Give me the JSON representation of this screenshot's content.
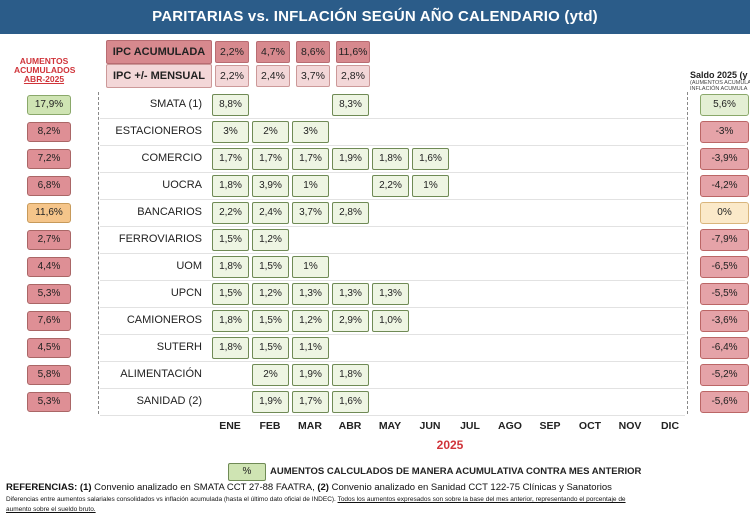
{
  "header": {
    "title": "PARITARIAS vs. INFLACIÓN SEGÚN AÑO CALENDARIO (ytd)"
  },
  "left_label": [
    "AUMENTOS",
    "ACUMULADOS",
    "ABR-2025"
  ],
  "ipc": {
    "acumulada_label": "IPC ACUMULADA",
    "mensual_label": "IPC +/- MENSUAL",
    "acumulada": [
      "2,2%",
      "4,7%",
      "8,6%",
      "11,6%"
    ],
    "mensual": [
      "2,2%",
      "2,4%",
      "3,7%",
      "2,8%"
    ]
  },
  "saldo": {
    "title": "Saldo 2025 (y",
    "subtitle": [
      "(AUMENTOS ACUMULA",
      "INFLACIÓN ACUMULA"
    ]
  },
  "months": [
    "ENE",
    "FEB",
    "MAR",
    "ABR",
    "MAY",
    "JUN",
    "JUL",
    "AGO",
    "SEP",
    "OCT",
    "NOV",
    "DIC"
  ],
  "year": "2025",
  "rows": [
    {
      "union": "SMATA (1)",
      "acc": "17,9%",
      "acc_color": "green",
      "cells": [
        "8,8%",
        "",
        "",
        "8,3%",
        "",
        "",
        "",
        "",
        "",
        "",
        "",
        ""
      ],
      "saldo": "5,6%",
      "saldo_color": "green"
    },
    {
      "union": "ESTACIONEROS",
      "acc": "8,2%",
      "acc_color": "red",
      "cells": [
        "3%",
        "2%",
        "3%",
        "",
        "",
        "",
        "",
        "",
        "",
        "",
        "",
        ""
      ],
      "saldo": "-3%",
      "saldo_color": "red"
    },
    {
      "union": "COMERCIO",
      "acc": "7,2%",
      "acc_color": "red",
      "cells": [
        "1,7%",
        "1,7%",
        "1,7%",
        "1,9%",
        "1,8%",
        "1,6%",
        "",
        "",
        "",
        "",
        "",
        ""
      ],
      "saldo": "-3,9%",
      "saldo_color": "red"
    },
    {
      "union": "UOCRA",
      "acc": "6,8%",
      "acc_color": "red",
      "cells": [
        "1,8%",
        "3,9%",
        "1%",
        "",
        "2,2%",
        "1%",
        "",
        "",
        "",
        "",
        "",
        ""
      ],
      "saldo": "-4,2%",
      "saldo_color": "red"
    },
    {
      "union": "BANCARIOS",
      "acc": "11,6%",
      "acc_color": "orange",
      "cells": [
        "2,2%",
        "2,4%",
        "3,7%",
        "2,8%",
        "",
        "",
        "",
        "",
        "",
        "",
        "",
        ""
      ],
      "saldo": "0%",
      "saldo_color": "cream"
    },
    {
      "union": "FERROVIARIOS",
      "acc": "2,7%",
      "acc_color": "red",
      "cells": [
        "1,5%",
        "1,2%",
        "",
        "",
        "",
        "",
        "",
        "",
        "",
        "",
        "",
        ""
      ],
      "saldo": "-7,9%",
      "saldo_color": "red"
    },
    {
      "union": "UOM",
      "acc": "4,4%",
      "acc_color": "red",
      "cells": [
        "1,8%",
        "1,5%",
        "1%",
        "",
        "",
        "",
        "",
        "",
        "",
        "",
        "",
        ""
      ],
      "saldo": "-6,5%",
      "saldo_color": "red"
    },
    {
      "union": "UPCN",
      "acc": "5,3%",
      "acc_color": "red",
      "cells": [
        "1,5%",
        "1,2%",
        "1,3%",
        "1,3%",
        "1,3%",
        "",
        "",
        "",
        "",
        "",
        "",
        ""
      ],
      "saldo": "-5,5%",
      "saldo_color": "red"
    },
    {
      "union": "CAMIONEROS",
      "acc": "7,6%",
      "acc_color": "red",
      "cells": [
        "1,8%",
        "1,5%",
        "1,2%",
        "2,9%",
        "1,0%",
        "",
        "",
        "",
        "",
        "",
        "",
        ""
      ],
      "saldo": "-3,6%",
      "saldo_color": "red"
    },
    {
      "union": "SUTERH",
      "acc": "4,5%",
      "acc_color": "red",
      "cells": [
        "1,8%",
        "1,5%",
        "1,1%",
        "",
        "",
        "",
        "",
        "",
        "",
        "",
        "",
        ""
      ],
      "saldo": "-6,4%",
      "saldo_color": "red"
    },
    {
      "union": "ALIMENTACIÓN",
      "acc": "5,8%",
      "acc_color": "red",
      "cells": [
        "",
        "2%",
        "1,9%",
        "1,8%",
        "",
        "",
        "",
        "",
        "",
        "",
        "",
        ""
      ],
      "saldo": "-5,2%",
      "saldo_color": "red"
    },
    {
      "union": "SANIDAD (2)",
      "acc": "5,3%",
      "acc_color": "red",
      "cells": [
        "",
        "1,9%",
        "1,7%",
        "1,6%",
        "",
        "",
        "",
        "",
        "",
        "",
        "",
        ""
      ],
      "saldo": "-5,6%",
      "saldo_color": "red"
    }
  ],
  "legend": {
    "symbol": "%",
    "text": "AUMENTOS CALCULADOS DE MANERA ACUMULATIVA CONTRA MES ANTERIOR"
  },
  "references": {
    "line1_label": "REFERENCIAS:",
    "line1_n1": "(1)",
    "line1_t1": "Convenio analizado en SMATA CCT 27-88 FAATRA,",
    "line1_n2": "(2)",
    "line1_t2": "Convenio analizado en Sanidad CCT 122-75 Clínicas y Sanatorios",
    "line2": "Diferencias entre aumentos salariales consolidados vs inflación acumulada (hasta el último dato oficial de INDEC).",
    "line2_underlined": "Todos los aumentos expresados son sobre la base del mes anterior, representando el porcentaje de",
    "line3": "aumento sobre el sueldo bruto."
  }
}
